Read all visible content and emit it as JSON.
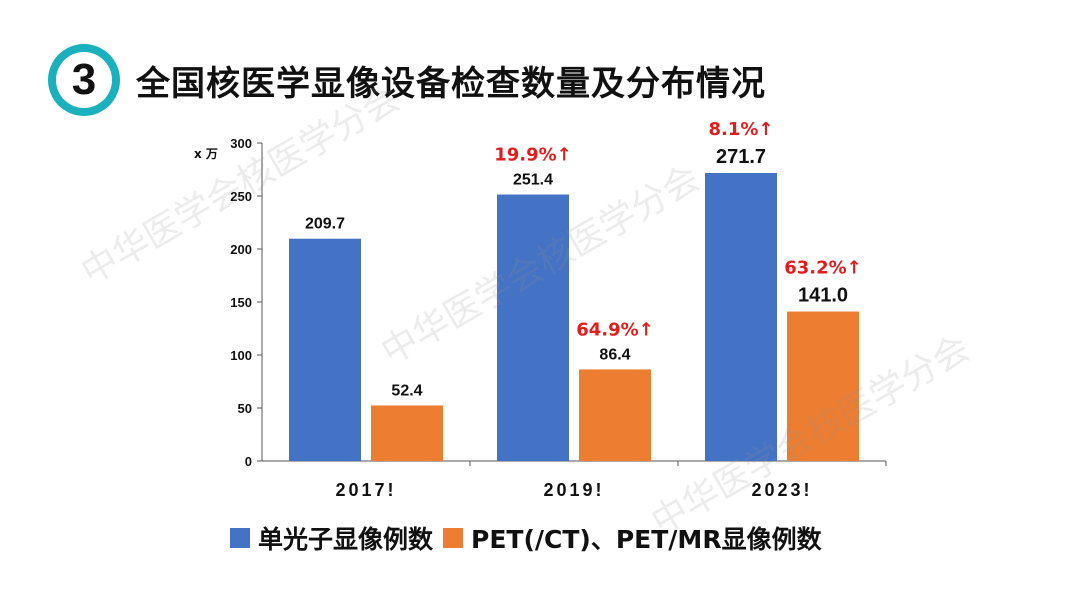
{
  "header": {
    "badge_number": "3",
    "title": "全国核医学显像设备检查数量及分布情况"
  },
  "watermark_text": "中华医学会核医学分会",
  "colors": {
    "series1": "#4472c4",
    "series2": "#ed7d31",
    "growth": "#e31c1c",
    "badge": "#1ab0bd"
  },
  "legend": [
    {
      "label": "单光子显像例数",
      "color": "#4472c4"
    },
    {
      "label": "PET(/CT)、PET/MR显像例数",
      "color": "#ed7d31"
    }
  ],
  "chart_data": {
    "type": "bar",
    "title": "全国核医学显像设备检查数量及分布情况",
    "ylabel": "x 万",
    "xlabel": "",
    "ylim": [
      0,
      300
    ],
    "yticks": [
      0,
      50,
      100,
      150,
      200,
      250,
      300
    ],
    "categories": [
      "2017!",
      "2019!",
      "2023!"
    ],
    "series": [
      {
        "name": "单光子显像例数",
        "values": [
          209.7,
          251.4,
          271.7
        ],
        "labels": [
          "209.7",
          "251.4",
          "271.7"
        ],
        "growth": [
          "",
          "19.9%↑",
          "8.1%↑"
        ]
      },
      {
        "name": "PET(/CT)、PET/MR显像例数",
        "values": [
          52.4,
          86.4,
          141.0
        ],
        "labels": [
          "52.4",
          "86.4",
          "141.0"
        ],
        "growth": [
          "",
          "64.9%↑",
          "63.2%↑"
        ]
      }
    ]
  }
}
